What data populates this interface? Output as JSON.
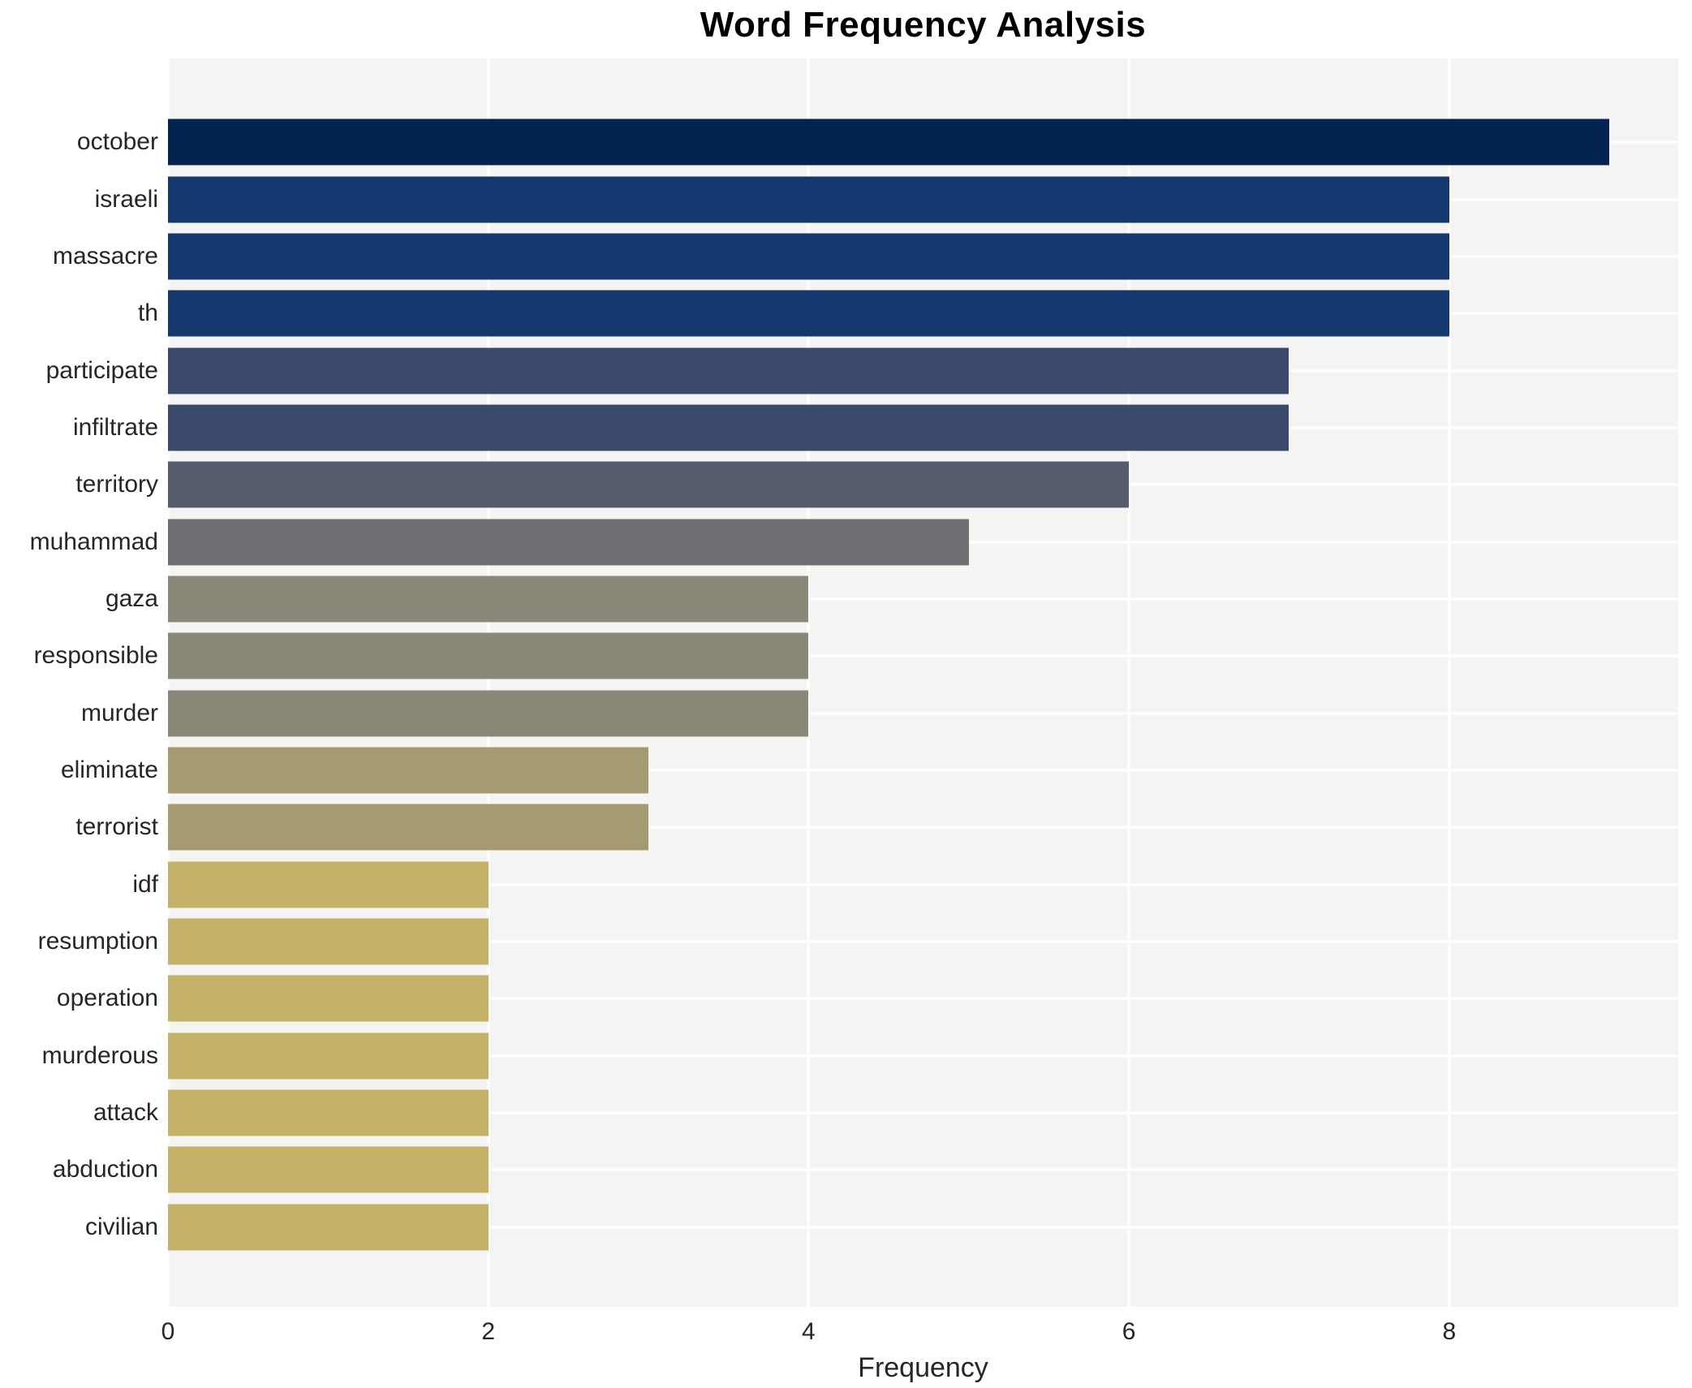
{
  "chart_data": {
    "type": "bar",
    "orientation": "horizontal",
    "title": "Word Frequency Analysis",
    "xlabel": "Frequency",
    "ylabel": "",
    "xlim": [
      0,
      9.43
    ],
    "x_ticks": [
      0,
      2,
      4,
      6,
      8
    ],
    "grid": true,
    "legend": false,
    "plot_bg": "#f4f4f2",
    "grid_color": "#ffffff",
    "text_color": "#262626",
    "title_color": "#000000",
    "categories": [
      "october",
      "israeli",
      "massacre",
      "th",
      "participate",
      "infiltrate",
      "territory",
      "muhammad",
      "gaza",
      "responsible",
      "murder",
      "eliminate",
      "terrorist",
      "idf",
      "resumption",
      "operation",
      "murderous",
      "attack",
      "abduction",
      "civilian"
    ],
    "values": [
      9,
      8,
      8,
      8,
      7,
      7,
      6,
      5,
      4,
      4,
      4,
      3,
      3,
      2,
      2,
      2,
      2,
      2,
      2,
      2
    ],
    "bar_colors": [
      "#032350",
      "#14376e",
      "#14376e",
      "#14376e",
      "#3b4a6c",
      "#3b4a6c",
      "#565c6d",
      "#6e7073",
      "#8b8779",
      "#8b8779",
      "#8b8779",
      "#a49b73",
      "#a49b73",
      "#c3b267",
      "#c3b267",
      "#c3b267",
      "#c3b267",
      "#c3b267",
      "#c3b267",
      "#c3b267"
    ]
  }
}
